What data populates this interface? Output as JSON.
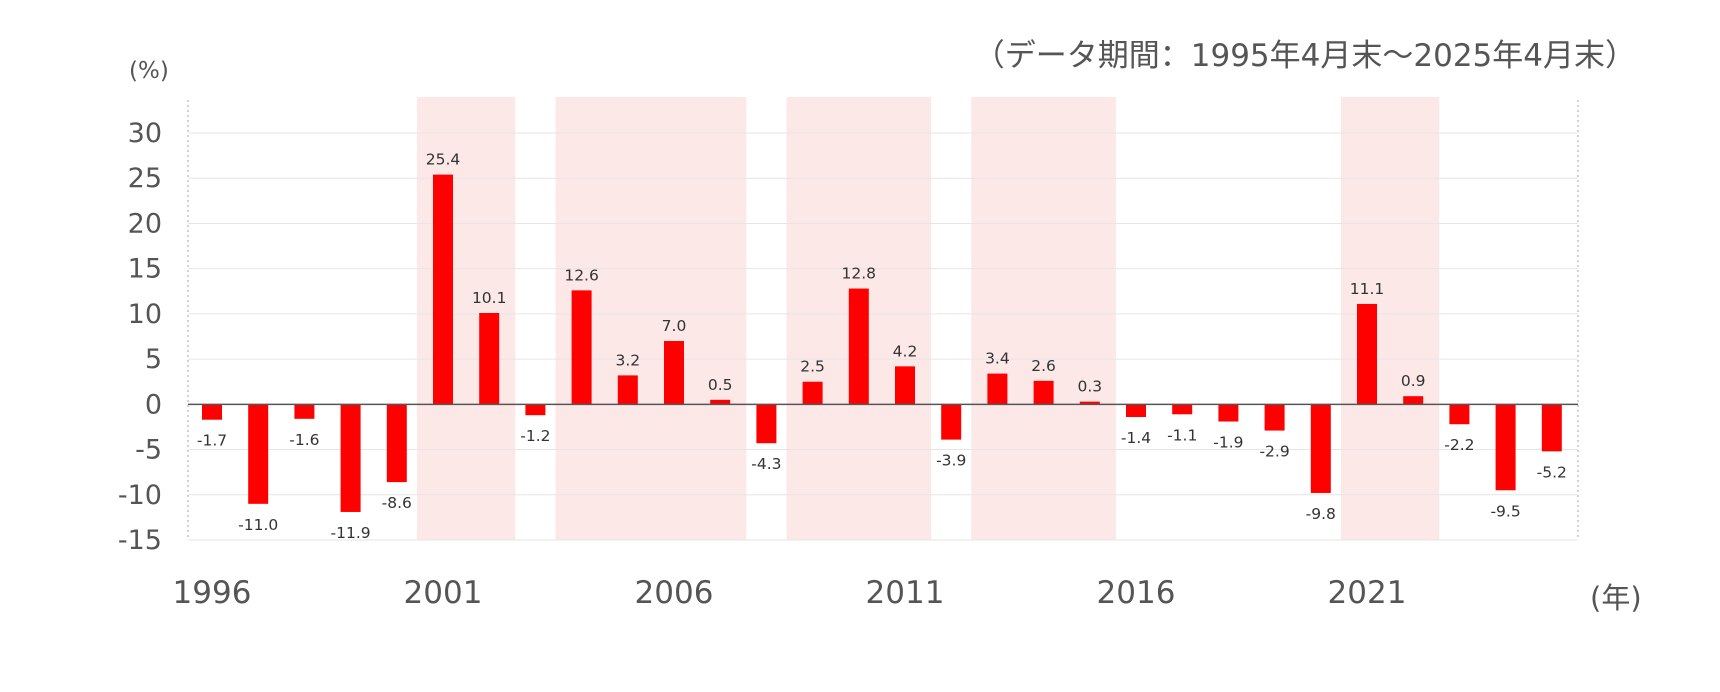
{
  "period_note": "（データ期間：1995年4月末～2025年4月末）",
  "chart_data": {
    "type": "bar",
    "title": "",
    "ylabel": "(%)",
    "xunit": "(年)",
    "ylim": [
      -15,
      30
    ],
    "yticks": [
      30,
      25,
      20,
      15,
      10,
      5,
      0,
      -5,
      -10,
      -15
    ],
    "x": [
      1996,
      1997,
      1998,
      1999,
      2000,
      2001,
      2002,
      2003,
      2004,
      2005,
      2006,
      2007,
      2008,
      2009,
      2010,
      2011,
      2012,
      2013,
      2014,
      2015,
      2016,
      2017,
      2018,
      2019,
      2020,
      2021,
      2022,
      2023,
      2024,
      2025
    ],
    "values": [
      -1.7,
      -11.0,
      -1.6,
      -11.9,
      -8.6,
      25.4,
      10.1,
      -1.2,
      12.6,
      3.2,
      7.0,
      0.5,
      -4.3,
      2.5,
      12.8,
      4.2,
      -3.9,
      3.4,
      2.6,
      0.3,
      -1.4,
      -1.1,
      -1.9,
      -2.9,
      -9.8,
      11.1,
      0.9,
      -2.2,
      -9.5,
      -5.2
    ],
    "value_labels": [
      "-1.7",
      "-11.0",
      "-1.6",
      "-11.9",
      "-8.6",
      "25.4",
      "10.1",
      "-1.2",
      "12.6",
      "3.2",
      "7.0",
      "0.5",
      "-4.3",
      "2.5",
      "12.8",
      "4.2",
      "-3.9",
      "3.4",
      "2.6",
      "0.3",
      "-1.4",
      "-1.1",
      "-1.9",
      "-2.9",
      "-9.8",
      "11.1",
      "0.9",
      "-2.2",
      "-9.5",
      "-5.2"
    ],
    "xtick_labels": [
      "1996",
      "2001",
      "2006",
      "2011",
      "2016",
      "2021"
    ],
    "xtick_years": [
      1996,
      2001,
      2006,
      2011,
      2016,
      2021
    ],
    "shaded_ranges": [
      [
        2001,
        2002
      ],
      [
        2004,
        2007
      ],
      [
        2009,
        2011
      ],
      [
        2013,
        2015
      ],
      [
        2021,
        2022
      ]
    ],
    "colors": {
      "bar": "#ff0000",
      "shade": "#fde8e8",
      "grid": "#e6e6e6",
      "text": "#555555",
      "label": "#333333"
    },
    "grid": true
  }
}
